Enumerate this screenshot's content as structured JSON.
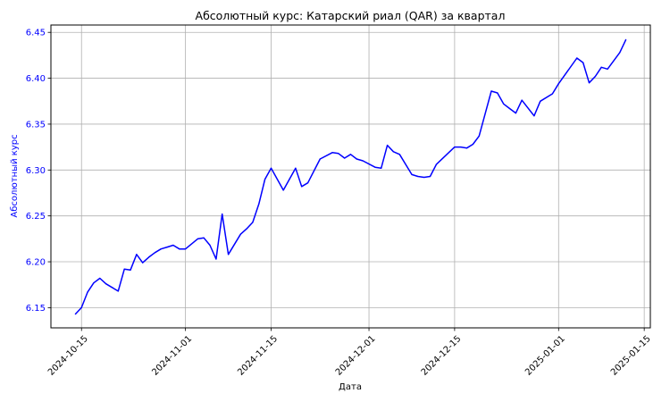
{
  "chart_data": {
    "type": "line",
    "title": "Абсолютный курс: Катарский риал (QAR) за квартал",
    "xlabel": "Дата",
    "ylabel": "Абсолютный курс",
    "grid": true,
    "colors": {
      "line": "#0000ff",
      "ylabel": "#0000ff",
      "yticks": "#0000ff",
      "grid": "#b0b0b0",
      "text": "#000000"
    },
    "xlim": [
      "2024-10-10",
      "2025-01-16"
    ],
    "ylim": [
      6.128,
      6.458
    ],
    "x_ticks": [
      {
        "value": "2024-10-15",
        "label": "2024-10-15"
      },
      {
        "value": "2024-11-01",
        "label": "2024-11-01"
      },
      {
        "value": "2024-11-15",
        "label": "2024-11-15"
      },
      {
        "value": "2024-12-01",
        "label": "2024-12-01"
      },
      {
        "value": "2024-12-15",
        "label": "2024-12-15"
      },
      {
        "value": "2025-01-01",
        "label": "2025-01-01"
      },
      {
        "value": "2025-01-15",
        "label": "2025-01-15"
      }
    ],
    "y_ticks": [
      {
        "value": 6.15,
        "label": "6.15"
      },
      {
        "value": 6.2,
        "label": "6.20"
      },
      {
        "value": 6.25,
        "label": "6.25"
      },
      {
        "value": 6.3,
        "label": "6.30"
      },
      {
        "value": 6.35,
        "label": "6.35"
      },
      {
        "value": 6.4,
        "label": "6.40"
      },
      {
        "value": 6.45,
        "label": "6.45"
      }
    ],
    "series": [
      {
        "x": [
          "2024-10-14",
          "2024-10-15",
          "2024-10-16",
          "2024-10-17",
          "2024-10-18",
          "2024-10-19",
          "2024-10-20",
          "2024-10-21",
          "2024-10-22",
          "2024-10-23",
          "2024-10-24",
          "2024-10-25",
          "2024-10-26",
          "2024-10-27",
          "2024-10-28",
          "2024-10-29",
          "2024-10-30",
          "2024-10-31",
          "2024-11-01",
          "2024-11-03",
          "2024-11-04",
          "2024-11-05",
          "2024-11-06",
          "2024-11-07",
          "2024-11-08",
          "2024-11-10",
          "2024-11-11",
          "2024-11-12",
          "2024-11-13",
          "2024-11-14",
          "2024-11-15",
          "2024-11-17",
          "2024-11-18",
          "2024-11-19",
          "2024-11-20",
          "2024-11-21",
          "2024-11-23",
          "2024-11-25",
          "2024-11-26",
          "2024-11-27",
          "2024-11-28",
          "2024-11-29",
          "2024-11-30",
          "2024-12-02",
          "2024-12-03",
          "2024-12-04",
          "2024-12-05",
          "2024-12-06",
          "2024-12-08",
          "2024-12-09",
          "2024-12-10",
          "2024-12-11",
          "2024-12-12",
          "2024-12-15",
          "2024-12-16",
          "2024-12-17",
          "2024-12-18",
          "2024-12-19",
          "2024-12-21",
          "2024-12-22",
          "2024-12-23",
          "2024-12-24",
          "2024-12-25",
          "2024-12-26",
          "2024-12-28",
          "2024-12-29",
          "2024-12-31",
          "2025-01-01",
          "2025-01-04",
          "2025-01-05",
          "2025-01-06",
          "2025-01-07",
          "2025-01-08",
          "2025-01-09",
          "2025-01-11",
          "2025-01-12"
        ],
        "values": [
          6.143,
          6.15,
          6.167,
          6.177,
          6.182,
          6.176,
          6.172,
          6.168,
          6.192,
          6.191,
          6.208,
          6.199,
          6.205,
          6.21,
          6.214,
          6.216,
          6.218,
          6.214,
          6.214,
          6.225,
          6.226,
          6.218,
          6.203,
          6.252,
          6.208,
          6.23,
          6.236,
          6.243,
          6.263,
          6.29,
          6.302,
          6.278,
          6.29,
          6.302,
          6.282,
          6.286,
          6.312,
          6.319,
          6.318,
          6.313,
          6.317,
          6.312,
          6.31,
          6.303,
          6.302,
          6.327,
          6.32,
          6.317,
          6.295,
          6.293,
          6.292,
          6.293,
          6.306,
          6.325,
          6.325,
          6.324,
          6.328,
          6.337,
          6.386,
          6.384,
          6.372,
          6.367,
          6.362,
          6.376,
          6.359,
          6.375,
          6.383,
          6.394,
          6.422,
          6.417,
          6.395,
          6.402,
          6.412,
          6.41,
          6.428,
          6.442
        ]
      }
    ]
  }
}
